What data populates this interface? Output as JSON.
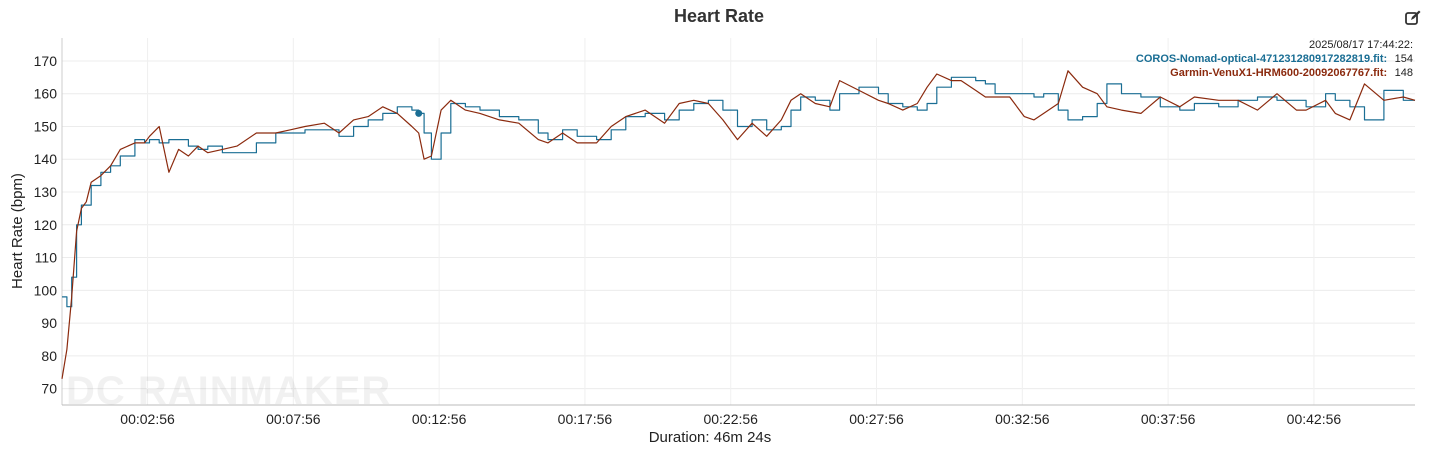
{
  "chart_data": {
    "type": "line",
    "title": "Heart Rate",
    "ylabel": "Heart Rate (bpm)",
    "xlabel": "Duration: 46m 24s",
    "ylim": [
      65,
      177
    ],
    "xlim_seconds": [
      0,
      2784
    ],
    "y_ticks": [
      70,
      80,
      90,
      100,
      110,
      120,
      130,
      140,
      150,
      160,
      170
    ],
    "x_tick_labels": [
      "00:02:56",
      "00:07:56",
      "00:12:56",
      "00:17:56",
      "00:22:56",
      "00:27:56",
      "00:32:56",
      "00:37:56",
      "00:42:56"
    ],
    "x_tick_seconds": [
      176,
      476,
      776,
      1076,
      1376,
      1676,
      1976,
      2276,
      2576
    ],
    "grid": true,
    "legend": {
      "placement": "top-right",
      "timestamp": "2025/08/17 17:44:22:",
      "entries": [
        {
          "name": "COROS-Nomad-optical-471231280917282819.fit:",
          "value": "154",
          "color": "#1a6e94"
        },
        {
          "name": "Garmin-VenuX1-HRM600-20092067767.fit:",
          "value": "148",
          "color": "#8b2a0e"
        }
      ]
    },
    "hover_marker": {
      "x_seconds": 734,
      "y": 154,
      "series": 0
    },
    "series": [
      {
        "name": "COROS-Nomad-optical-471231280917282819.fit",
        "color": "#1a6e94",
        "x": [
          0,
          10,
          20,
          30,
          40,
          50,
          60,
          80,
          100,
          120,
          150,
          170,
          180,
          200,
          220,
          240,
          260,
          280,
          300,
          330,
          360,
          400,
          440,
          470,
          500,
          540,
          570,
          600,
          630,
          660,
          690,
          720,
          734,
          745,
          760,
          780,
          800,
          830,
          860,
          900,
          940,
          980,
          1000,
          1030,
          1060,
          1100,
          1130,
          1160,
          1200,
          1240,
          1270,
          1300,
          1330,
          1360,
          1390,
          1420,
          1450,
          1480,
          1500,
          1520,
          1550,
          1580,
          1600,
          1640,
          1680,
          1700,
          1730,
          1760,
          1780,
          1800,
          1830,
          1850,
          1880,
          1900,
          1920,
          1950,
          1980,
          2000,
          2020,
          2050,
          2070,
          2100,
          2130,
          2150,
          2180,
          2220,
          2260,
          2300,
          2330,
          2380,
          2420,
          2460,
          2500,
          2540,
          2560,
          2600,
          2620,
          2650,
          2680,
          2720,
          2760,
          2784
        ],
        "values": [
          98,
          95,
          104,
          120,
          126,
          126,
          132,
          136,
          138,
          141,
          146,
          145,
          146,
          145,
          146,
          146,
          144,
          143,
          144,
          142,
          142,
          145,
          148,
          148,
          149,
          149,
          147,
          150,
          152,
          154,
          156,
          155,
          154,
          148,
          140,
          148,
          157,
          156,
          155,
          153,
          152,
          148,
          146,
          149,
          147,
          146,
          149,
          153,
          154,
          152,
          155,
          157,
          158,
          155,
          150,
          152,
          149,
          150,
          155,
          159,
          158,
          155,
          160,
          162,
          160,
          157,
          156,
          155,
          157,
          162,
          165,
          165,
          164,
          163,
          160,
          160,
          160,
          159,
          160,
          155,
          152,
          153,
          157,
          163,
          160,
          159,
          156,
          155,
          157,
          156,
          158,
          159,
          158,
          158,
          156,
          160,
          158,
          156,
          152,
          161,
          158,
          158
        ]
      },
      {
        "name": "Garmin-VenuX1-HRM600-20092067767.fit",
        "color": "#8b2a0e",
        "x": [
          0,
          10,
          20,
          30,
          40,
          50,
          60,
          80,
          100,
          120,
          150,
          170,
          180,
          200,
          220,
          240,
          260,
          280,
          300,
          330,
          360,
          400,
          440,
          470,
          500,
          540,
          570,
          600,
          630,
          660,
          690,
          720,
          734,
          745,
          760,
          780,
          800,
          830,
          860,
          900,
          940,
          980,
          1000,
          1030,
          1060,
          1100,
          1130,
          1160,
          1200,
          1240,
          1270,
          1300,
          1330,
          1360,
          1390,
          1420,
          1450,
          1480,
          1500,
          1520,
          1550,
          1580,
          1600,
          1640,
          1680,
          1700,
          1730,
          1760,
          1780,
          1800,
          1830,
          1850,
          1880,
          1900,
          1920,
          1950,
          1980,
          2000,
          2020,
          2050,
          2070,
          2100,
          2130,
          2150,
          2180,
          2220,
          2260,
          2300,
          2330,
          2380,
          2420,
          2460,
          2500,
          2540,
          2560,
          2600,
          2620,
          2650,
          2680,
          2720,
          2760,
          2784
        ],
        "values": [
          73,
          82,
          98,
          118,
          125,
          127,
          133,
          135,
          138,
          143,
          145,
          145,
          147,
          150,
          136,
          143,
          141,
          144,
          142,
          143,
          144,
          148,
          148,
          149,
          150,
          151,
          148,
          152,
          153,
          156,
          154,
          150,
          148,
          140,
          141,
          155,
          158,
          155,
          154,
          152,
          151,
          146,
          145,
          148,
          145,
          145,
          150,
          153,
          155,
          151,
          157,
          158,
          157,
          152,
          146,
          151,
          147,
          152,
          158,
          160,
          157,
          156,
          164,
          161,
          158,
          157,
          155,
          157,
          162,
          166,
          164,
          164,
          161,
          159,
          159,
          159,
          153,
          152,
          154,
          157,
          167,
          162,
          160,
          156,
          155,
          154,
          159,
          156,
          159,
          158,
          158,
          155,
          160,
          155,
          155,
          158,
          154,
          152,
          163,
          158,
          159,
          158
        ]
      }
    ]
  }
}
